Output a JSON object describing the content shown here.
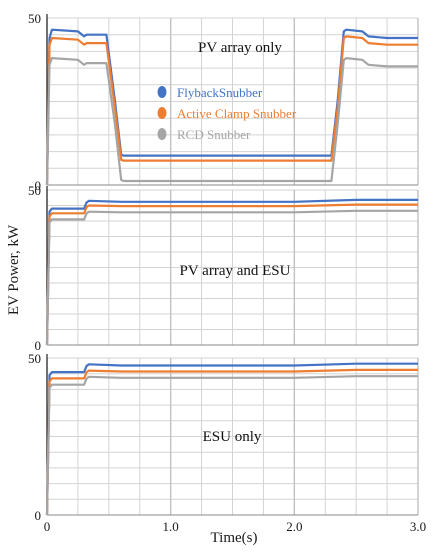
{
  "figure": {
    "ylabel": "EV Power, kW",
    "xlabel": "Time(s)"
  },
  "colors": {
    "flyback": "#4472C4",
    "active_clamp": "#ED7D31",
    "rcd": "#A5A5A5",
    "grid": "#d3d3d3",
    "axis": "#222222"
  },
  "chart_data": [
    {
      "type": "line",
      "title": "PV array only",
      "xlim": [
        0,
        3.0
      ],
      "ylim": [
        0,
        50
      ],
      "ytick_labels": [
        "0",
        "50"
      ],
      "xtick_labels": [],
      "legend": {
        "placement": "center",
        "entries": [
          "FlybackSnubber",
          "Active Clamp Snubber",
          "RCD Snubber"
        ]
      },
      "grid": true,
      "series": [
        {
          "name": "FlybackSnubber",
          "x": [
            0,
            0.02,
            0.04,
            0.25,
            0.3,
            0.32,
            0.35,
            0.48,
            0.55,
            0.6,
            0.62,
            2.0,
            2.25,
            2.3,
            2.35,
            2.4,
            2.42,
            2.55,
            2.6,
            2.75,
            3.0
          ],
          "y": [
            0,
            44,
            46.5,
            46,
            44.5,
            45,
            45,
            45,
            25,
            9,
            8.8,
            8.8,
            8.8,
            8.8,
            25,
            46,
            46.5,
            46,
            44.5,
            44,
            44
          ]
        },
        {
          "name": "Active Clamp Snubber",
          "x": [
            0,
            0.02,
            0.04,
            0.25,
            0.3,
            0.32,
            0.35,
            0.48,
            0.55,
            0.6,
            0.62,
            2.0,
            2.25,
            2.3,
            2.35,
            2.4,
            2.42,
            2.55,
            2.6,
            2.75,
            3.0
          ],
          "y": [
            0,
            42,
            44,
            43.5,
            42,
            42.5,
            42.5,
            42.5,
            23,
            7.5,
            7.3,
            7.3,
            7.3,
            7.3,
            23,
            44,
            44.5,
            44,
            42.5,
            42,
            42
          ]
        },
        {
          "name": "RCD Snubber",
          "x": [
            0,
            0.02,
            0.04,
            0.25,
            0.3,
            0.32,
            0.35,
            0.48,
            0.55,
            0.6,
            0.62,
            2.0,
            2.25,
            2.3,
            2.35,
            2.4,
            2.42,
            2.55,
            2.6,
            2.75,
            3.0
          ],
          "y": [
            0,
            36,
            38,
            37.5,
            36,
            36.5,
            36.5,
            36.5,
            18,
            1.5,
            1.2,
            1.2,
            1.2,
            1.2,
            18,
            37.5,
            38,
            37.5,
            36,
            35.5,
            35.5
          ]
        }
      ]
    },
    {
      "type": "line",
      "title": "PV array and ESU",
      "xlim": [
        0,
        3.0
      ],
      "ylim": [
        0,
        50
      ],
      "ytick_labels": [
        "0",
        "50"
      ],
      "xtick_labels": [],
      "grid": true,
      "series": [
        {
          "name": "FlybackSnubber",
          "x": [
            0,
            0.02,
            0.04,
            0.3,
            0.32,
            0.34,
            0.6,
            2.0,
            2.5,
            3.0
          ],
          "y": [
            0,
            43,
            44,
            44,
            46,
            46.5,
            46.2,
            46.2,
            46.8,
            46.8
          ]
        },
        {
          "name": "Active Clamp Snubber",
          "x": [
            0,
            0.02,
            0.04,
            0.3,
            0.32,
            0.34,
            0.6,
            2.0,
            2.5,
            3.0
          ],
          "y": [
            0,
            41.5,
            42.5,
            42.5,
            44.5,
            45,
            44.8,
            44.8,
            45.3,
            45.3
          ]
        },
        {
          "name": "RCD Snubber",
          "x": [
            0,
            0.02,
            0.04,
            0.3,
            0.32,
            0.34,
            0.6,
            2.0,
            2.5,
            3.0
          ],
          "y": [
            0,
            39.5,
            40.5,
            40.5,
            42.5,
            43,
            42.8,
            42.8,
            43.3,
            43.3
          ]
        }
      ]
    },
    {
      "type": "line",
      "title": "ESU only",
      "xlim": [
        0,
        3.0
      ],
      "ylim": [
        0,
        50
      ],
      "ytick_labels": [
        "0",
        "50"
      ],
      "xtick_labels": [
        "0",
        "1.0",
        "2.0",
        "3.0"
      ],
      "grid": true,
      "series": [
        {
          "name": "FlybackSnubber",
          "x": [
            0,
            0.02,
            0.04,
            0.3,
            0.32,
            0.34,
            0.6,
            2.0,
            2.5,
            3.0
          ],
          "y": [
            0,
            44.5,
            45.5,
            45.5,
            47.5,
            48,
            47.6,
            47.6,
            48.2,
            48.2
          ]
        },
        {
          "name": "Active Clamp Snubber",
          "x": [
            0,
            0.02,
            0.04,
            0.3,
            0.32,
            0.34,
            0.6,
            2.0,
            2.5,
            3.0
          ],
          "y": [
            0,
            42.5,
            43.5,
            43.5,
            45.5,
            46,
            45.7,
            45.7,
            46.2,
            46.2
          ]
        },
        {
          "name": "RCD Snubber",
          "x": [
            0,
            0.02,
            0.04,
            0.3,
            0.32,
            0.34,
            0.6,
            2.0,
            2.5,
            3.0
          ],
          "y": [
            0,
            40.5,
            41.5,
            41.5,
            43.5,
            44,
            43.7,
            43.7,
            44.2,
            44.2
          ]
        }
      ]
    }
  ]
}
